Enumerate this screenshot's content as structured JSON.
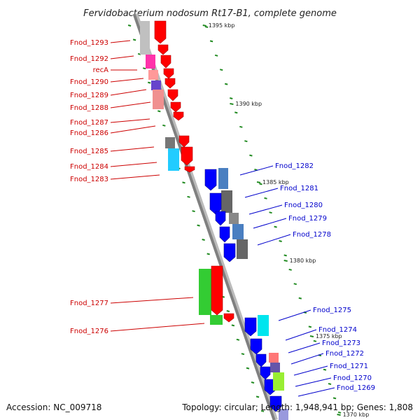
{
  "title": "Fervidobacterium nodosum Rt17-B1, complete genome",
  "footer": {
    "accession": "Accession: NC_009718",
    "summary": "Topology: circular; Length: 1,948,941 bp; Genes: 1,808"
  },
  "scale_labels": [
    "1395 kbp",
    "1390 kbp",
    "1385 kbp",
    "1380 kbp",
    "1375 kbp",
    "1370 kbp"
  ],
  "colors": {
    "forward_strand": "#ff0000",
    "reverse_strand": "#0000ff",
    "forward_label": "#cc0000",
    "reverse_label": "#0000cc",
    "rna_gene": "#33cc33",
    "backbone": "#999999",
    "scale_tick": "#228b22"
  },
  "genes_left": [
    "Fnod_1293",
    "Fnod_1292",
    "recA",
    "Fnod_1290",
    "Fnod_1289",
    "Fnod_1288",
    "Fnod_1287",
    "Fnod_1286",
    "Fnod_1285",
    "Fnod_1284",
    "Fnod_1283",
    "Fnod_1277",
    "Fnod_1276"
  ],
  "genes_right": [
    "Fnod_1282",
    "Fnod_1281",
    "Fnod_1280",
    "Fnod_1279",
    "Fnod_1278",
    "Fnod_1275",
    "Fnod_1274",
    "Fnod_1273",
    "Fnod_1272",
    "Fnod_1271",
    "Fnod_1270",
    "Fnod_1269"
  ]
}
